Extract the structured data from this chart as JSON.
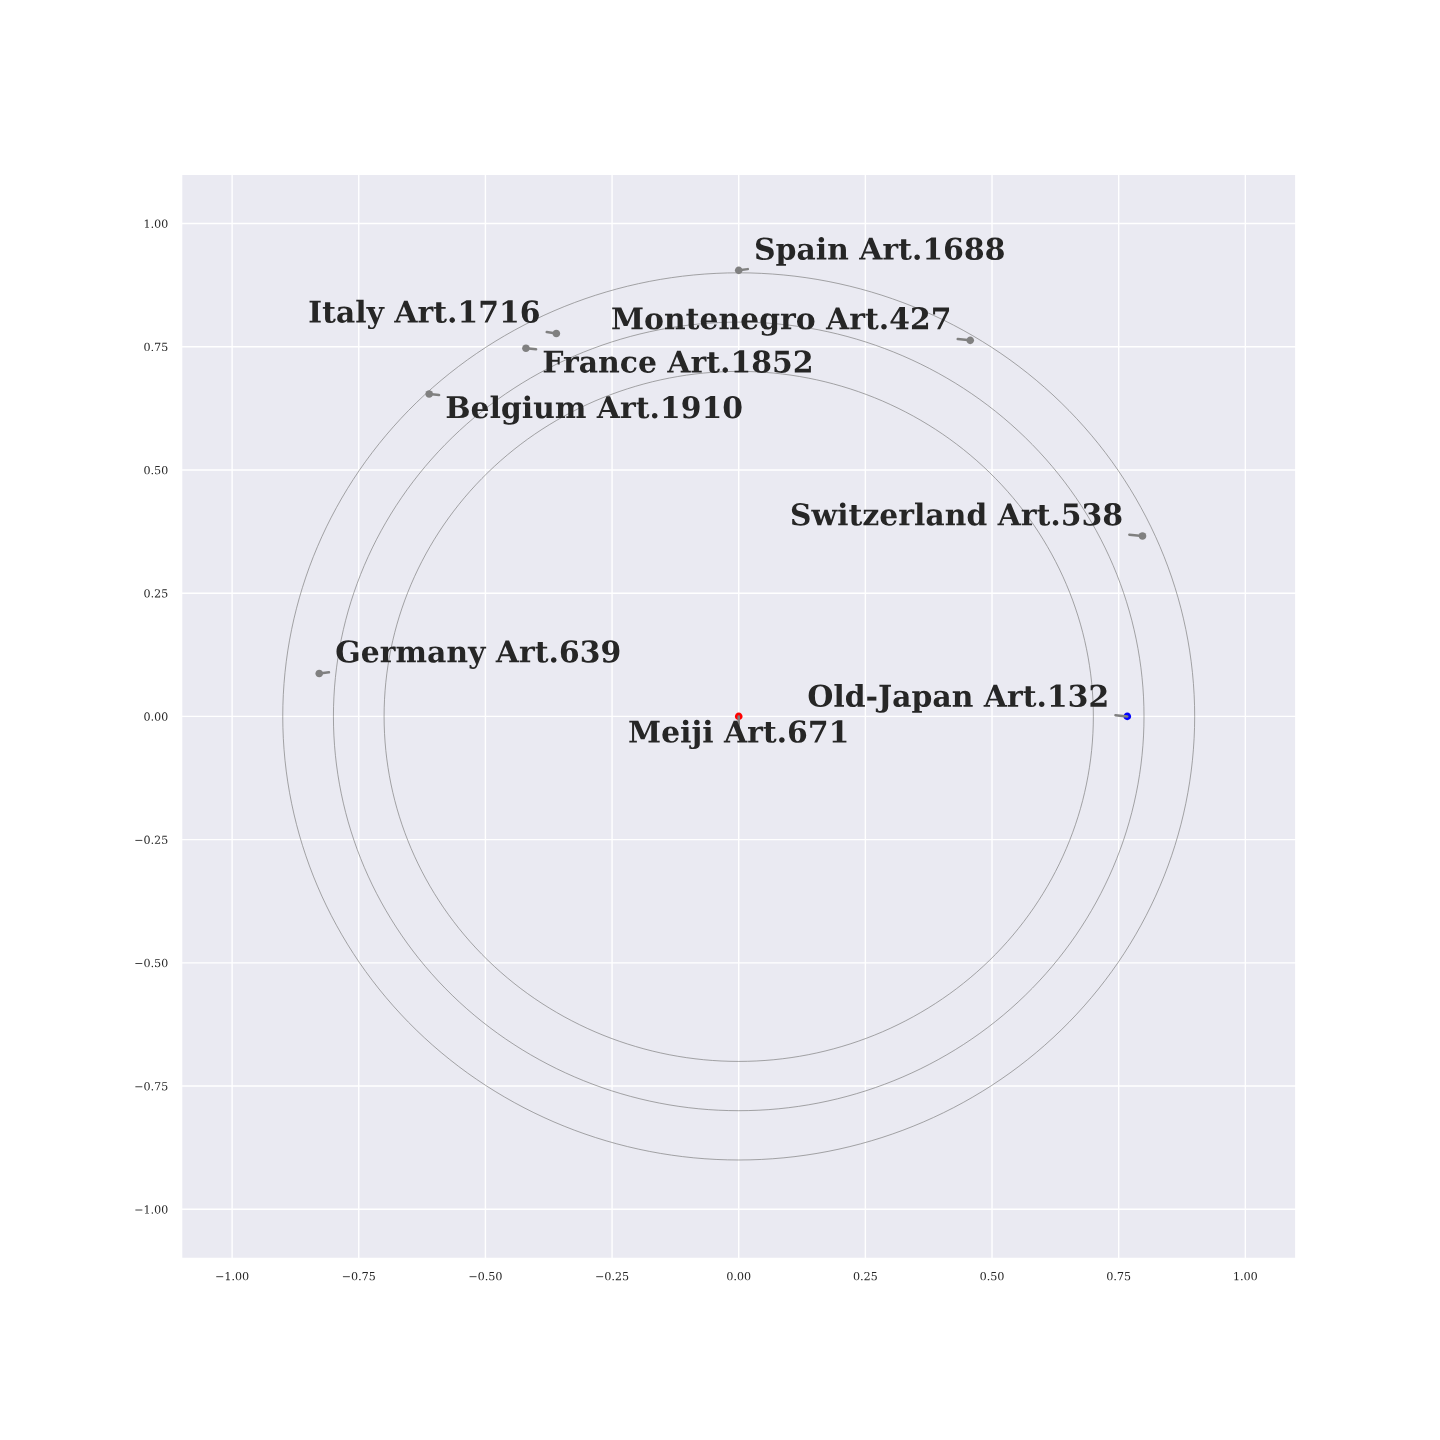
{
  "chart_data": {
    "type": "scatter",
    "xlim": [
      -1.1,
      1.1
    ],
    "ylim": [
      -1.1,
      1.1
    ],
    "xticks": [
      {
        "value": -1,
        "label": "−1.00"
      },
      {
        "value": -0.75,
        "label": "−0.75"
      },
      {
        "value": -0.5,
        "label": "−0.50"
      },
      {
        "value": -0.25,
        "label": "−0.25"
      },
      {
        "value": 0,
        "label": "0.00"
      },
      {
        "value": 0.25,
        "label": "0.25"
      },
      {
        "value": 0.5,
        "label": "0.50"
      },
      {
        "value": 0.75,
        "label": "0.75"
      },
      {
        "value": 1,
        "label": "1.00"
      }
    ],
    "yticks": [
      {
        "value": -1,
        "label": "−1.00"
      },
      {
        "value": -0.75,
        "label": "−0.75"
      },
      {
        "value": -0.5,
        "label": "−0.50"
      },
      {
        "value": -0.25,
        "label": "−0.25"
      },
      {
        "value": 0,
        "label": "0.00"
      },
      {
        "value": 0.25,
        "label": "0.25"
      },
      {
        "value": 0.5,
        "label": "0.50"
      },
      {
        "value": 0.75,
        "label": "0.75"
      },
      {
        "value": 1,
        "label": "1.00"
      }
    ],
    "grid": true,
    "marker": "circle",
    "series": [
      {
        "type": "scatter",
        "color": "#808080",
        "x": [
          0.0,
          -0.36,
          -0.42,
          0.457,
          -0.611,
          0.797,
          -0.828
        ],
        "values": [
          0.905,
          0.777,
          0.747,
          0.763,
          0.654,
          0.366,
          0.087
        ]
      },
      {
        "type": "scatter",
        "color": "#0000ff",
        "x": [
          0.767
        ],
        "values": [
          0
        ]
      },
      {
        "type": "scatter",
        "color": "#ff0000",
        "x": [
          0
        ],
        "values": [
          0
        ]
      }
    ],
    "annotations": [
      {
        "text": "Spain Art.1688",
        "x": 0.0,
        "y": 0.905
      },
      {
        "text": "Italy Art.1716",
        "x": -0.36,
        "y": 0.777
      },
      {
        "text": "France Art.1852",
        "x": -0.42,
        "y": 0.747
      },
      {
        "text": "Montenegro Art.427",
        "x": 0.457,
        "y": 0.763
      },
      {
        "text": "Belgium Art.1910",
        "x": -0.611,
        "y": 0.654
      },
      {
        "text": "Switzerland Art.538",
        "x": 0.797,
        "y": 0.366
      },
      {
        "text": "Germany Art.639",
        "x": -0.828,
        "y": 0.087
      },
      {
        "text": "Old-Japan Art.132",
        "x": 0.767,
        "y": 0
      },
      {
        "text": "Meiji Art.671",
        "x": 0,
        "y": 0
      }
    ]
  }
}
